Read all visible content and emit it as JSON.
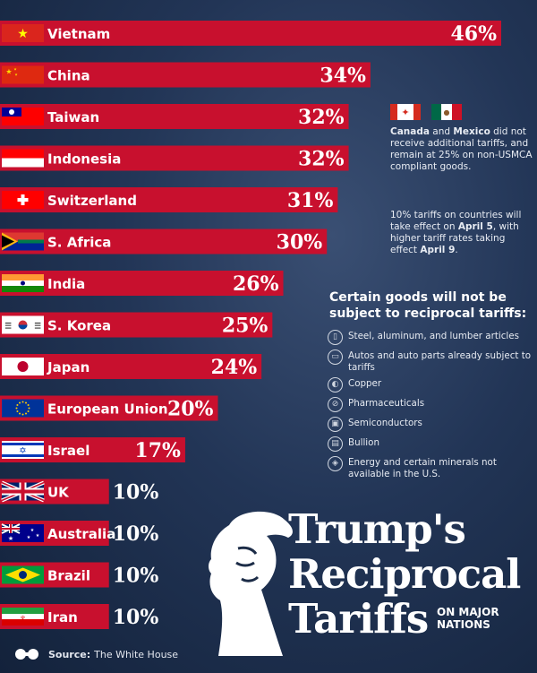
{
  "chart_data": {
    "type": "bar",
    "orientation": "horizontal",
    "categories": [
      "Vietnam",
      "China",
      "Taiwan",
      "Indonesia",
      "Switzerland",
      "S. Africa",
      "India",
      "S. Korea",
      "Japan",
      "European Union",
      "Israel",
      "UK",
      "Australia",
      "Brazil",
      "Iran"
    ],
    "values": [
      46,
      34,
      32,
      32,
      31,
      30,
      26,
      25,
      24,
      20,
      17,
      10,
      10,
      10,
      10
    ],
    "value_labels": [
      "46%",
      "34%",
      "32%",
      "32%",
      "31%",
      "30%",
      "26%",
      "25%",
      "24%",
      "20%",
      "17%",
      "10%",
      "10%",
      "10%",
      "10%"
    ],
    "xlim": [
      0,
      46
    ],
    "bar_color": "#c8102e"
  },
  "title": [
    "Trump's",
    "Reciprocal",
    "Tariffs"
  ],
  "subtitle": [
    "ON MAJOR",
    "NATIONS"
  ],
  "notes": {
    "canada_mexico": [
      "Canada",
      " and ",
      "Mexico",
      " did not receive additional tariffs, and remain at 25% on non-USMCA compliant goods."
    ],
    "timing": [
      "10% tariffs on countries will take effect on ",
      "April 5",
      ", with higher tariff rates taking effect ",
      "April 9",
      "."
    ]
  },
  "exempt": {
    "title": "Certain goods will not be subject to reciprocal tariffs:",
    "items": [
      {
        "icon": "lumber-icon",
        "label": "Steel, aluminum, and lumber articles"
      },
      {
        "icon": "car-icon",
        "label": "Autos and auto parts already subject to tariffs"
      },
      {
        "icon": "copper-icon",
        "label": "Copper"
      },
      {
        "icon": "pill-icon",
        "label": "Pharmaceuticals"
      },
      {
        "icon": "chip-icon",
        "label": "Semiconductors"
      },
      {
        "icon": "gold-bar-icon",
        "label": "Bullion"
      },
      {
        "icon": "mineral-icon",
        "label": "Energy and certain minerals not available in the U.S."
      }
    ]
  },
  "source": {
    "label": "Source:",
    "text": "The White House"
  },
  "flags": [
    "vietnam-flag",
    "china-flag",
    "taiwan-flag",
    "indonesia-flag",
    "switzerland-flag",
    "south-africa-flag",
    "india-flag",
    "south-korea-flag",
    "japan-flag",
    "eu-flag",
    "israel-flag",
    "uk-flag",
    "australia-flag",
    "brazil-flag",
    "iran-flag",
    "canada-flag",
    "mexico-flag"
  ]
}
